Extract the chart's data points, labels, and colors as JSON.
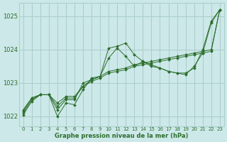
{
  "title": "Graphe pression niveau de la mer (hPa)",
  "bg_color": "#cce8e8",
  "grid_color": "#aacccc",
  "line_color": "#2d6e2d",
  "xlim": [
    -0.5,
    23.5
  ],
  "ylim": [
    1021.7,
    1025.4
  ],
  "yticks": [
    1022,
    1023,
    1024,
    1025
  ],
  "xticks": [
    0,
    1,
    2,
    3,
    4,
    5,
    6,
    7,
    8,
    9,
    10,
    11,
    12,
    13,
    14,
    15,
    16,
    17,
    18,
    19,
    20,
    21,
    22,
    23
  ],
  "series": [
    [
      1022.05,
      1022.45,
      1022.65,
      1022.65,
      1022.0,
      1022.4,
      1022.35,
      1022.8,
      1023.15,
      1023.2,
      1024.05,
      1024.1,
      1024.2,
      1023.85,
      1023.65,
      1023.5,
      1023.45,
      1023.35,
      1023.3,
      1023.3,
      1023.45,
      1024.0,
      1024.85,
      1025.2
    ],
    [
      1022.1,
      1022.5,
      1022.65,
      1022.65,
      1022.2,
      1022.5,
      1022.5,
      1023.0,
      1023.1,
      1023.2,
      1023.75,
      1024.05,
      1023.8,
      1023.5,
      1023.65,
      1023.55,
      1023.45,
      1023.35,
      1023.3,
      1023.25,
      1023.5,
      1023.9,
      1024.8,
      1025.2
    ],
    [
      1022.15,
      1022.55,
      1022.65,
      1022.65,
      1022.3,
      1022.55,
      1022.55,
      1022.9,
      1023.05,
      1023.15,
      1023.3,
      1023.35,
      1023.4,
      1023.5,
      1023.55,
      1023.6,
      1023.65,
      1023.7,
      1023.75,
      1023.8,
      1023.85,
      1023.9,
      1023.95,
      1025.2
    ],
    [
      1022.2,
      1022.55,
      1022.65,
      1022.65,
      1022.4,
      1022.6,
      1022.6,
      1022.9,
      1023.1,
      1023.2,
      1023.35,
      1023.4,
      1023.45,
      1023.55,
      1023.6,
      1023.65,
      1023.7,
      1023.75,
      1023.8,
      1023.85,
      1023.9,
      1023.95,
      1024.0,
      1025.2
    ]
  ]
}
